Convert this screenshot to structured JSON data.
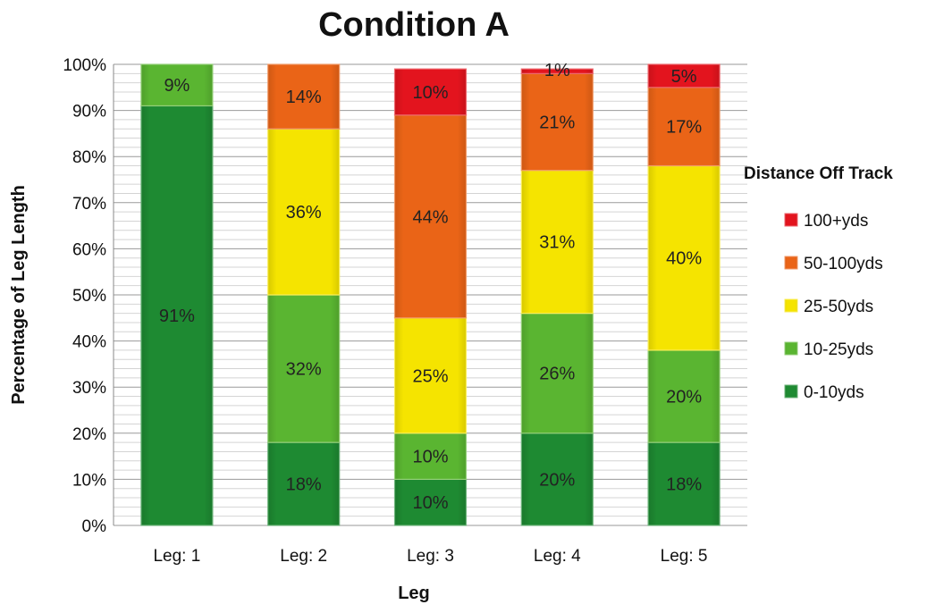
{
  "chart_data": {
    "type": "bar",
    "stacked": true,
    "title": "Condition A",
    "xlabel": "Leg",
    "ylabel": "Percentage of Leg  Length",
    "categories": [
      "Leg: 1",
      "Leg: 2",
      "Leg: 3",
      "Leg: 4",
      "Leg: 5"
    ],
    "ylim": [
      0,
      100
    ],
    "y_ticks": [
      "0%",
      "10%",
      "20%",
      "30%",
      "40%",
      "50%",
      "60%",
      "70%",
      "80%",
      "90%",
      "100%"
    ],
    "grid": true,
    "legend_title": "Distance Off Track",
    "legend_position": "right",
    "series": [
      {
        "name": "0-10yds",
        "color": "#1e8a32",
        "values": [
          91,
          18,
          10,
          20,
          18
        ],
        "labels": [
          "91%",
          "18%",
          "10%",
          "20%",
          "18%"
        ]
      },
      {
        "name": "10-25yds",
        "color": "#5ab531",
        "values": [
          9,
          32,
          10,
          26,
          20
        ],
        "labels": [
          "9%",
          "32%",
          "10%",
          "26%",
          "20%"
        ]
      },
      {
        "name": "25-50yds",
        "color": "#f5e400",
        "values": [
          0,
          36,
          25,
          31,
          40
        ],
        "labels": [
          "",
          "36%",
          "25%",
          "31%",
          "40%"
        ]
      },
      {
        "name": "50-100yds",
        "color": "#ea6417",
        "values": [
          0,
          14,
          44,
          21,
          17
        ],
        "labels": [
          "",
          "14%",
          "44%",
          "21%",
          "17%"
        ]
      },
      {
        "name": "100+yds",
        "color": "#e3141e",
        "values": [
          0,
          0,
          10,
          1,
          5
        ],
        "labels": [
          "",
          "",
          "10%",
          "1%",
          "5%"
        ]
      }
    ],
    "legend_order": [
      "100+yds",
      "50-100yds",
      "25-50yds",
      "10-25yds",
      "0-10yds"
    ]
  }
}
